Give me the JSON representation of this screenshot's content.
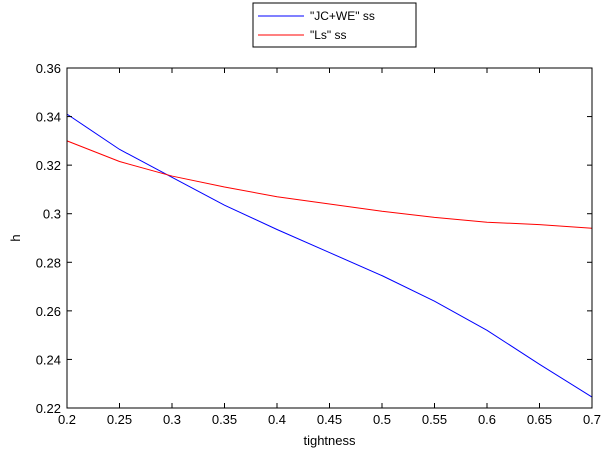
{
  "chart_data": {
    "type": "line",
    "xlabel": "tightness",
    "ylabel": "h",
    "xlim": [
      0.2,
      0.7
    ],
    "ylim": [
      0.22,
      0.36
    ],
    "xticks": [
      0.2,
      0.25,
      0.3,
      0.35,
      0.4,
      0.45,
      0.5,
      0.55,
      0.6,
      0.65,
      0.7
    ],
    "xtick_labels": [
      "0.2",
      "0.25",
      "0.3",
      "0.35",
      "0.4",
      "0.45",
      "0.5",
      "0.55",
      "0.6",
      "0.65",
      "0.7"
    ],
    "yticks": [
      0.22,
      0.24,
      0.26,
      0.28,
      0.3,
      0.32,
      0.34,
      0.36
    ],
    "ytick_labels": [
      "0.22",
      "0.24",
      "0.26",
      "0.28",
      "0.3",
      "0.32",
      "0.34",
      "0.36"
    ],
    "grid": false,
    "legend_position": "top-center, outside plot",
    "series": [
      {
        "name": "\"JC+WE\" ss",
        "color": "#0000ff",
        "x": [
          0.2,
          0.25,
          0.3,
          0.35,
          0.4,
          0.45,
          0.5,
          0.55,
          0.6,
          0.65,
          0.7
        ],
        "y": [
          0.341,
          0.3265,
          0.315,
          0.3035,
          0.2935,
          0.284,
          0.2745,
          0.264,
          0.252,
          0.238,
          0.2245
        ]
      },
      {
        "name": "\"Ls\" ss",
        "color": "#ff0000",
        "x": [
          0.2,
          0.25,
          0.3,
          0.35,
          0.4,
          0.45,
          0.5,
          0.55,
          0.6,
          0.65,
          0.7
        ],
        "y": [
          0.33,
          0.3215,
          0.3155,
          0.311,
          0.307,
          0.304,
          0.301,
          0.2985,
          0.2965,
          0.2955,
          0.294
        ]
      }
    ]
  }
}
